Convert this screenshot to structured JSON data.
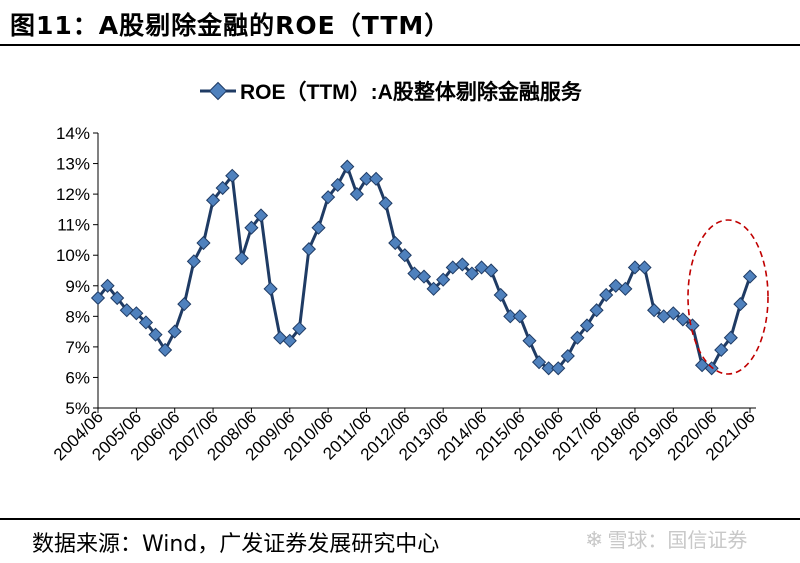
{
  "figure_title": "图11：A股剔除金融的ROE（TTM）",
  "source_note": "数据来源：Wind，广发证券发展研究中心",
  "watermark": {
    "icon": "snowball-icon",
    "text": "雪球：国信证券"
  },
  "colors": {
    "series_fill": "#4F81BD",
    "series_stroke": "#1F3B64",
    "axis": "#000000",
    "highlight": "#C00000"
  },
  "chart_data": {
    "type": "line",
    "legend": {
      "label": "ROE（TTM）:A股整体剔除金融服务",
      "position": "top-center"
    },
    "grid": false,
    "xlabel": "",
    "ylabel": "",
    "ylim": [
      5,
      14
    ],
    "yticks": [
      "5%",
      "6%",
      "7%",
      "8%",
      "9%",
      "10%",
      "11%",
      "12%",
      "13%",
      "14%"
    ],
    "xticks": [
      "2004/06",
      "2005/06",
      "2006/06",
      "2007/06",
      "2008/06",
      "2009/06",
      "2010/06",
      "2011/06",
      "2012/06",
      "2013/06",
      "2014/06",
      "2015/06",
      "2016/06",
      "2017/06",
      "2018/06",
      "2019/06",
      "2020/06",
      "2021/06"
    ],
    "series": [
      {
        "name": "ROE（TTM）:A股整体剔除金融服务",
        "marker": "diamond",
        "values": [
          8.6,
          9.0,
          8.6,
          8.2,
          8.1,
          7.8,
          7.4,
          6.9,
          7.5,
          8.4,
          9.8,
          10.4,
          11.8,
          12.2,
          12.6,
          9.9,
          10.9,
          11.3,
          8.9,
          7.3,
          7.2,
          7.6,
          10.2,
          10.9,
          11.9,
          12.3,
          12.9,
          12.0,
          12.5,
          12.5,
          11.7,
          10.4,
          10.0,
          9.4,
          9.3,
          8.9,
          9.2,
          9.6,
          9.7,
          9.4,
          9.6,
          9.5,
          8.7,
          8.0,
          8.0,
          7.2,
          6.5,
          6.3,
          6.3,
          6.7,
          7.3,
          7.7,
          8.2,
          8.7,
          9.0,
          8.9,
          9.6,
          9.6,
          8.2,
          8.0,
          8.1,
          7.9,
          7.7,
          6.4,
          6.3,
          6.9,
          7.3,
          8.4,
          9.3
        ]
      }
    ],
    "annotation": {
      "type": "dashed-ellipse",
      "label": "",
      "covers": "2020/06–2021/06"
    }
  }
}
